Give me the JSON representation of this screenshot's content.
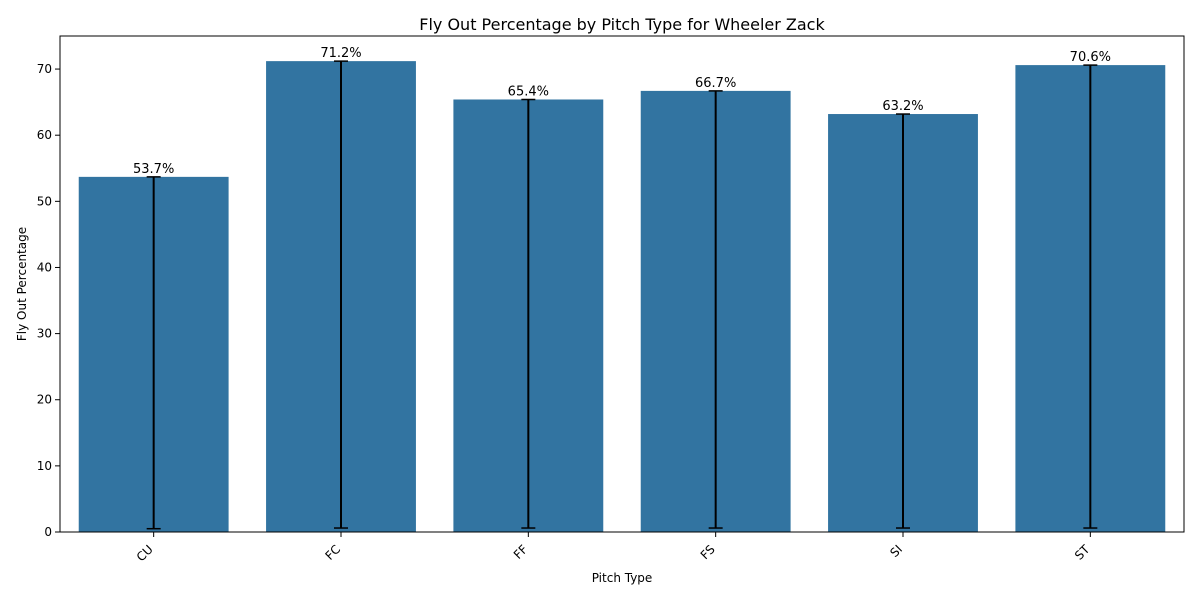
{
  "chart_data": {
    "type": "bar",
    "title": "Fly Out Percentage by Pitch Type for Wheeler Zack",
    "xlabel": "Pitch Type",
    "ylabel": "Fly Out Percentage",
    "categories": [
      "CU",
      "FC",
      "FF",
      "FS",
      "SI",
      "ST"
    ],
    "values": [
      53.7,
      71.2,
      65.4,
      66.7,
      63.2,
      70.6
    ],
    "value_labels": [
      "53.7%",
      "71.2%",
      "65.4%",
      "66.7%",
      "63.2%",
      "70.6%"
    ],
    "error_bars": {
      "lower": [
        0.5,
        0.6,
        0.6,
        0.6,
        0.6,
        0.6
      ],
      "upper": [
        53.7,
        71.2,
        65.4,
        66.7,
        63.2,
        70.6
      ]
    },
    "ylim": [
      0,
      75
    ],
    "yticks": [
      0,
      10,
      20,
      30,
      40,
      50,
      60,
      70
    ],
    "xtick_rotation": 45,
    "grid": false,
    "colors": {
      "bar": "#3274a1",
      "error_bar": "#000000",
      "axis": "#000000"
    }
  }
}
